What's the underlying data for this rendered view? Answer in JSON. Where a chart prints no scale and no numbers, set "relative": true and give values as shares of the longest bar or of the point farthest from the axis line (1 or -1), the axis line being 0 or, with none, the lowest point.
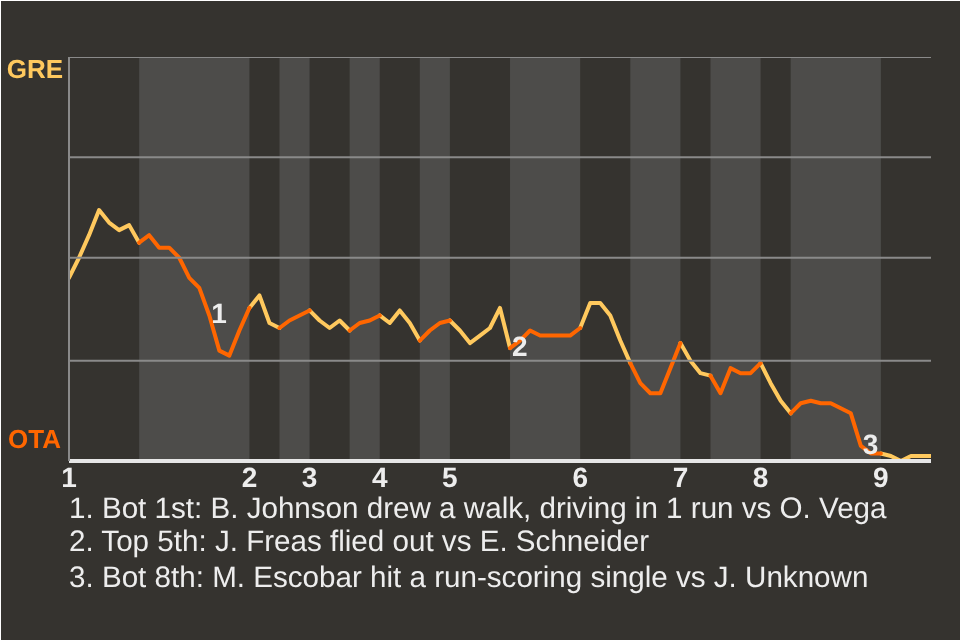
{
  "chart_data": {
    "type": "line",
    "relative": true,
    "categories": [
      "1",
      null,
      null,
      null,
      null,
      null,
      null,
      null,
      null,
      null,
      null,
      null,
      null,
      null,
      null,
      null,
      null,
      null,
      "2",
      null,
      null,
      null,
      null,
      null,
      "3",
      null,
      null,
      null,
      null,
      null,
      null,
      "4",
      null,
      null,
      null,
      null,
      null,
      null,
      "5",
      null,
      null,
      null,
      null,
      null,
      null,
      null,
      null,
      null,
      null,
      null,
      null,
      "6",
      null,
      null,
      null,
      null,
      null,
      null,
      null,
      null,
      null,
      "7",
      null,
      null,
      null,
      null,
      null,
      null,
      null,
      "8",
      null,
      null,
      null,
      null,
      null,
      null,
      null,
      null,
      null,
      null,
      null,
      "9",
      null,
      null,
      null,
      null,
      null
    ],
    "series": [
      {
        "name": "GRE",
        "color": "#ffc95e",
        "values": [
          0.73,
          0.81,
          0.9,
          1,
          0.95,
          0.92,
          0.94,
          0.87,
          null,
          null,
          null,
          null,
          null,
          null,
          null,
          null,
          null,
          null,
          0.61,
          0.66,
          0.55,
          0.53,
          null,
          null,
          0.6,
          0.56,
          0.53,
          0.56,
          0.52,
          null,
          null,
          0.58,
          0.55,
          0.6,
          0.55,
          0.48,
          null,
          null,
          0.56,
          0.52,
          0.47,
          0.5,
          0.53,
          0.61,
          0.45,
          null,
          null,
          null,
          null,
          null,
          null,
          0.53,
          0.63,
          0.63,
          0.58,
          0.48,
          0.39,
          null,
          null,
          null,
          null,
          0.47,
          0.4,
          0.35,
          0.34,
          null,
          null,
          null,
          null,
          0.39,
          0.31,
          0.24,
          0.19,
          null,
          null,
          null,
          null,
          null,
          null,
          null,
          null,
          0.03,
          0.02,
          0,
          0.02,
          0.02,
          0.02
        ]
      },
      {
        "name": "OTA",
        "color": "#ff6600",
        "values": [
          null,
          null,
          null,
          null,
          null,
          null,
          null,
          0.87,
          0.9,
          0.85,
          0.85,
          0.81,
          0.73,
          0.69,
          0.58,
          0.44,
          0.42,
          0.52,
          0.61,
          null,
          null,
          0.53,
          0.56,
          0.58,
          0.6,
          null,
          null,
          null,
          0.52,
          0.55,
          0.56,
          0.58,
          null,
          null,
          null,
          0.48,
          0.52,
          0.55,
          0.56,
          null,
          null,
          null,
          null,
          null,
          0.45,
          0.48,
          0.52,
          0.5,
          0.5,
          0.5,
          0.5,
          0.53,
          null,
          null,
          null,
          null,
          0.39,
          0.31,
          0.27,
          0.27,
          0.37,
          0.47,
          null,
          null,
          0.34,
          0.27,
          0.37,
          0.35,
          0.35,
          0.39,
          null,
          null,
          0.19,
          0.23,
          0.24,
          0.23,
          0.23,
          0.21,
          0.19,
          0.06,
          0.03,
          0.03,
          null,
          null,
          null,
          null,
          null
        ]
      }
    ],
    "ref_lines": [
      {
        "axis": "y",
        "value": 0.4,
        "color": "#8a8a8a"
      },
      {
        "axis": "y",
        "value": 0.81,
        "color": "#8a8a8a"
      },
      {
        "axis": "y",
        "value": 1.21,
        "color": "#8a8a8a"
      },
      {
        "axis": "y",
        "value": 1.61,
        "color": "#8a8a8a"
      }
    ],
    "annotations": [
      {
        "text": "1",
        "y": 0.58
      },
      {
        "text": "2",
        "y": 0.45
      },
      {
        "text": "3",
        "y": 0.06
      },
      "1. Bot 1st: B. Johnson drew a walk, driving in 1 run vs O. Vega",
      "2. Top 5th: J. Freas flied out vs E. Schneider",
      "3. Bot 8th: M. Escobar hit a run-scoring single vs J. Unknown"
    ]
  }
}
